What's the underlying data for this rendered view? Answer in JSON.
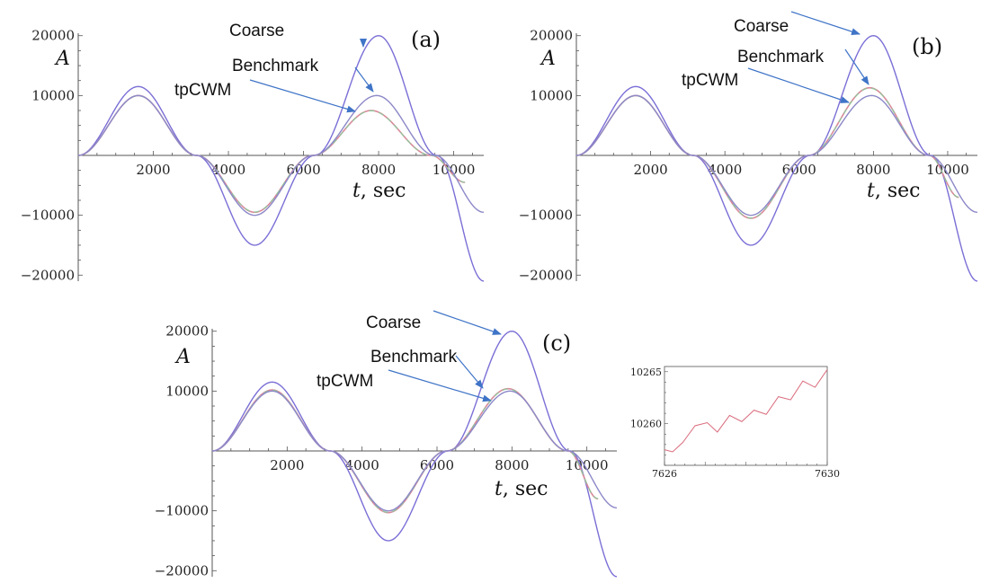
{
  "chart_data": [
    {
      "type": "line",
      "panel_label": "(a)",
      "ylabel": "A",
      "xlabel_var": "t",
      "xlabel_unit": ", sec",
      "xticks": [
        2000,
        4000,
        6000,
        8000,
        10000
      ],
      "xtick_labels": [
        "2000",
        "4000",
        "6000",
        "8000",
        "10000"
      ],
      "yticks": [
        20000,
        10000,
        -10000,
        -20000
      ],
      "ytick_labels": [
        "20000",
        "10000",
        "−10000",
        "−20000"
      ],
      "xlim": [
        0,
        10800
      ],
      "ylim": [
        -21500,
        21500
      ],
      "series": [
        {
          "name": "Coarse",
          "x": [
            0,
            1600,
            3150,
            4700,
            6300,
            8000,
            9550,
            10800
          ],
          "y": [
            0,
            11500,
            0,
            -15000,
            0,
            20000,
            0,
            -21000
          ]
        },
        {
          "name": "Benchmark",
          "x": [
            0,
            1600,
            3150,
            4700,
            6250,
            7950,
            9500,
            10800
          ],
          "y": [
            0,
            10000,
            0,
            -10000,
            0,
            10000,
            0,
            -9500
          ]
        },
        {
          "name": "tpCWM",
          "x": [
            0,
            1600,
            3150,
            4700,
            6250,
            7800,
            9400,
            10300
          ],
          "y": [
            0,
            10000,
            0,
            -9500,
            0,
            7500,
            0,
            -4500
          ]
        }
      ],
      "annotations": [
        {
          "text": "Coarse"
        },
        {
          "text": "Benchmark"
        },
        {
          "text": "tpCWM"
        }
      ]
    },
    {
      "type": "line",
      "panel_label": "(b)",
      "ylabel": "A",
      "xlabel_var": "t",
      "xlabel_unit": ", sec",
      "xticks": [
        2000,
        4000,
        6000,
        8000,
        10000
      ],
      "xtick_labels": [
        "2000",
        "4000",
        "6000",
        "8000",
        "10000"
      ],
      "yticks": [
        20000,
        10000,
        -10000,
        -20000
      ],
      "ytick_labels": [
        "20000",
        "10000",
        "−10000",
        "−20000"
      ],
      "xlim": [
        0,
        10800
      ],
      "ylim": [
        -21500,
        21500
      ],
      "series": [
        {
          "name": "Coarse",
          "x": [
            0,
            1600,
            3150,
            4700,
            6300,
            8000,
            9550,
            10800
          ],
          "y": [
            0,
            11500,
            0,
            -15000,
            0,
            20000,
            0,
            -21000
          ]
        },
        {
          "name": "Benchmark",
          "x": [
            0,
            1600,
            3150,
            4700,
            6250,
            7950,
            9500,
            10800
          ],
          "y": [
            0,
            10000,
            0,
            -10000,
            0,
            10000,
            0,
            -9500
          ]
        },
        {
          "name": "tpCWM",
          "x": [
            0,
            1600,
            3150,
            4700,
            6250,
            7900,
            9500,
            10300
          ],
          "y": [
            0,
            10000,
            0,
            -10500,
            0,
            11300,
            0,
            -7000
          ]
        }
      ],
      "annotations": [
        {
          "text": "Coarse"
        },
        {
          "text": "Benchmark"
        },
        {
          "text": "tpCWM"
        }
      ]
    },
    {
      "type": "line",
      "panel_label": "(c)",
      "ylabel": "A",
      "xlabel_var": "t",
      "xlabel_unit": ", sec",
      "xticks": [
        2000,
        4000,
        6000,
        8000,
        10000
      ],
      "xtick_labels": [
        "2000",
        "4000",
        "6000",
        "8000",
        "10000"
      ],
      "yticks": [
        20000,
        10000,
        -10000,
        -20000
      ],
      "ytick_labels": [
        "20000",
        "10000",
        "−10000",
        "−20000"
      ],
      "xlim": [
        0,
        10800
      ],
      "ylim": [
        -21500,
        21500
      ],
      "series": [
        {
          "name": "Coarse",
          "x": [
            0,
            1600,
            3150,
            4700,
            6300,
            8000,
            9550,
            10800
          ],
          "y": [
            0,
            11500,
            0,
            -15000,
            0,
            20000,
            0,
            -21000
          ]
        },
        {
          "name": "Benchmark",
          "x": [
            0,
            1600,
            3150,
            4700,
            6250,
            7950,
            9500,
            10800
          ],
          "y": [
            0,
            10000,
            0,
            -10000,
            0,
            10000,
            0,
            -9500
          ]
        },
        {
          "name": "tpCWM",
          "x": [
            0,
            1600,
            3150,
            4700,
            6250,
            7900,
            9500,
            10300
          ],
          "y": [
            0,
            10200,
            0,
            -10300,
            0,
            10400,
            0,
            -8000
          ]
        }
      ],
      "annotations": [
        {
          "text": "Coarse"
        },
        {
          "text": "Benchmark"
        },
        {
          "text": "tpCWM"
        }
      ]
    },
    {
      "type": "line",
      "panel_label": "",
      "xticks": [
        7626,
        7630
      ],
      "xtick_labels": [
        "7626",
        "7630"
      ],
      "yticks": [
        10260,
        10265
      ],
      "ytick_labels": [
        "10260",
        "10265"
      ],
      "xlim": [
        7626,
        7630
      ],
      "ylim": [
        10256,
        10265.5
      ],
      "series": [
        {
          "name": "",
          "x": [
            7626,
            7626.2,
            7626.45,
            7626.75,
            7627.05,
            7627.3,
            7627.6,
            7627.9,
            7628.2,
            7628.5,
            7628.8,
            7629.1,
            7629.4,
            7629.7,
            7630
          ],
          "y": [
            10257.5,
            10257.3,
            10258.2,
            10259.8,
            10260.1,
            10259.2,
            10260.8,
            10260.2,
            10261.3,
            10260.9,
            10262.6,
            10262.3,
            10264.1,
            10263.5,
            10265.2
          ]
        }
      ]
    }
  ],
  "colors": {
    "coarse": "#7a6fd6",
    "benchmark": "#8c88c8",
    "tpcwm_red": "#d98a9a",
    "tpcwm_green": "#8cc79a",
    "axis": "#555555",
    "arrow": "#3f74c7",
    "inset_line": "#d96b7c"
  }
}
